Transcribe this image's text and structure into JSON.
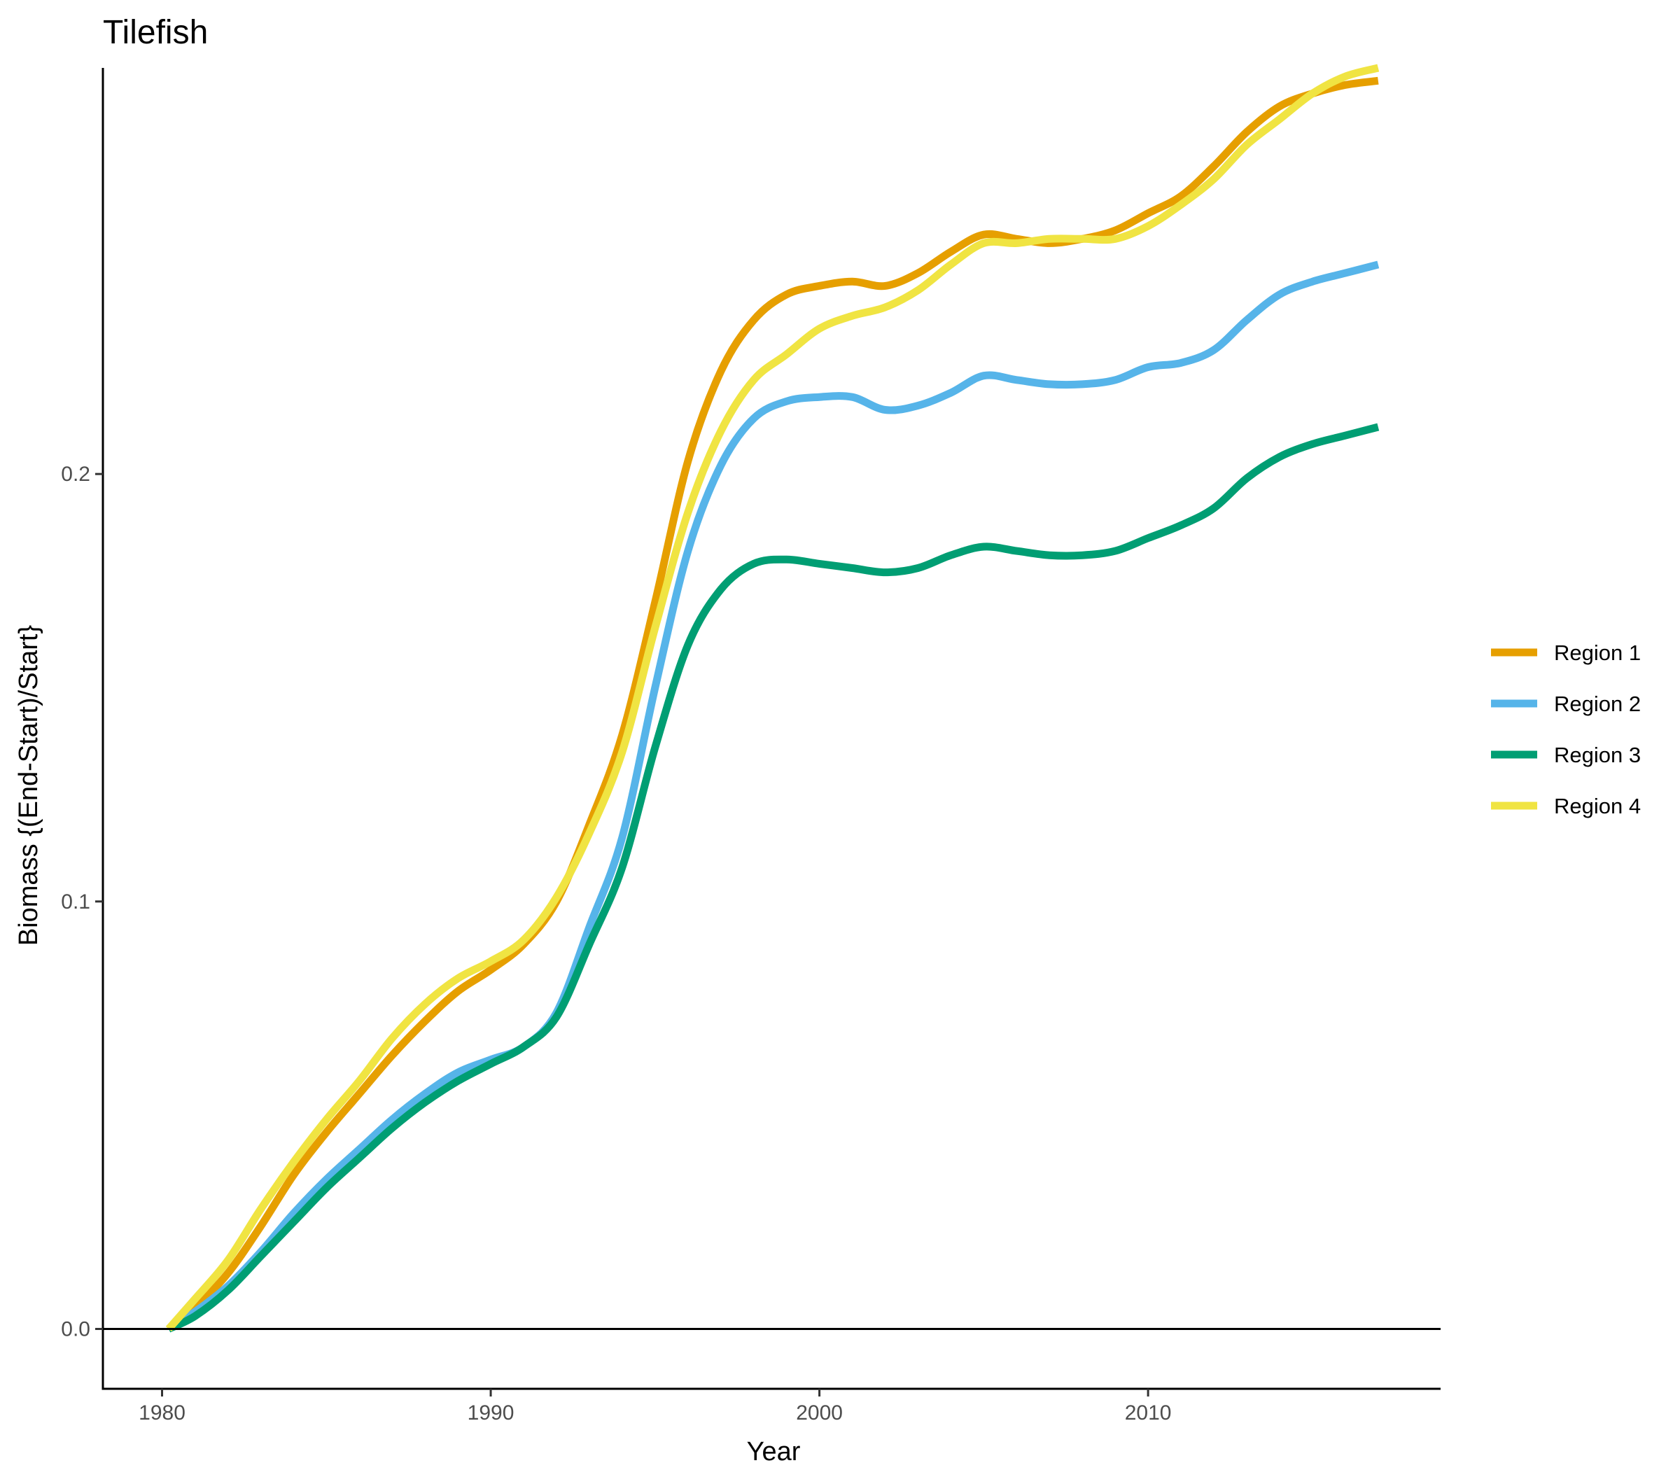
{
  "chart_data": {
    "type": "line",
    "title": "Tilefish",
    "xlabel": "Year",
    "ylabel": "Biomass {(End-Start)/Start}",
    "xlim": [
      1978.2,
      2018.9
    ],
    "ylim": [
      -0.014,
      0.295
    ],
    "xticks": [
      1980,
      1990,
      2000,
      2010
    ],
    "xtick_labels": [
      "1980",
      "1990",
      "2000",
      "2010"
    ],
    "yticks": [
      0.0,
      0.1,
      0.2
    ],
    "ytick_labels": [
      "0.0",
      "0.1",
      "0.2"
    ],
    "reference_line_y": 0,
    "grid": false,
    "legend_position": "right",
    "x": [
      1980.2,
      1981,
      1982,
      1983,
      1984,
      1985,
      1986,
      1987,
      1988,
      1989,
      1990,
      1991,
      1992,
      1993,
      1994,
      1995,
      1996,
      1997,
      1998,
      1999,
      2000,
      2001,
      2002,
      2003,
      2004,
      2005,
      2006,
      2007,
      2008,
      2009,
      2010,
      2011,
      2012,
      2013,
      2014,
      2015,
      2016,
      2017
    ],
    "series": [
      {
        "name": "Region 1",
        "color": "#E69F00",
        "values": [
          0.0,
          0.005,
          0.013,
          0.024,
          0.036,
          0.046,
          0.055,
          0.064,
          0.072,
          0.079,
          0.084,
          0.09,
          0.1,
          0.118,
          0.139,
          0.17,
          0.203,
          0.224,
          0.236,
          0.242,
          0.244,
          0.245,
          0.244,
          0.247,
          0.252,
          0.256,
          0.255,
          0.254,
          0.255,
          0.257,
          0.261,
          0.265,
          0.272,
          0.28,
          0.286,
          0.289,
          0.291,
          0.292
        ]
      },
      {
        "name": "Region 2",
        "color": "#56B4E9",
        "values": [
          0.0,
          0.004,
          0.01,
          0.018,
          0.027,
          0.035,
          0.042,
          0.049,
          0.055,
          0.06,
          0.063,
          0.066,
          0.074,
          0.094,
          0.115,
          0.15,
          0.182,
          0.202,
          0.213,
          0.217,
          0.218,
          0.218,
          0.215,
          0.216,
          0.219,
          0.223,
          0.222,
          0.221,
          0.221,
          0.222,
          0.225,
          0.226,
          0.229,
          0.236,
          0.242,
          0.245,
          0.247,
          0.249
        ]
      },
      {
        "name": "Region 3",
        "color": "#009E73",
        "values": [
          0.0,
          0.003,
          0.009,
          0.017,
          0.025,
          0.033,
          0.04,
          0.047,
          0.053,
          0.058,
          0.062,
          0.066,
          0.073,
          0.09,
          0.108,
          0.136,
          0.16,
          0.173,
          0.179,
          0.18,
          0.179,
          0.178,
          0.177,
          0.178,
          0.181,
          0.183,
          0.182,
          0.181,
          0.181,
          0.182,
          0.185,
          0.188,
          0.192,
          0.199,
          0.204,
          0.207,
          0.209,
          0.211
        ]
      },
      {
        "name": "Region 4",
        "color": "#F0E442",
        "values": [
          0.0,
          0.007,
          0.016,
          0.028,
          0.039,
          0.049,
          0.058,
          0.068,
          0.076,
          0.082,
          0.086,
          0.091,
          0.101,
          0.116,
          0.135,
          0.164,
          0.191,
          0.21,
          0.222,
          0.228,
          0.234,
          0.237,
          0.239,
          0.243,
          0.249,
          0.254,
          0.254,
          0.255,
          0.255,
          0.255,
          0.258,
          0.263,
          0.269,
          0.277,
          0.283,
          0.289,
          0.293,
          0.295
        ]
      }
    ]
  }
}
